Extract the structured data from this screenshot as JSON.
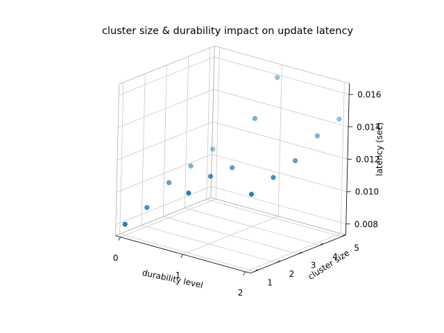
{
  "chart_data": {
    "type": "scatter",
    "projection": "3d",
    "title": "cluster size & durability impact on update latency",
    "xlabel": "durability level",
    "ylabel": "cluster size",
    "zlabel": "latency (sec)",
    "x_ticks": [
      0,
      1,
      2
    ],
    "y_ticks": [
      1,
      2,
      3,
      4,
      5
    ],
    "z_ticks": [
      "0.008",
      "0.010",
      "0.012",
      "0.014",
      "0.016"
    ],
    "xlim": [
      0,
      2
    ],
    "ylim": [
      1,
      5
    ],
    "zlim": [
      0.0075,
      0.0165
    ],
    "grid": true,
    "marker_color": "#1f77b4",
    "points": [
      {
        "x": 0,
        "y": 1,
        "z": 0.008
      },
      {
        "x": 0,
        "y": 2,
        "z": 0.0085
      },
      {
        "x": 0,
        "y": 3,
        "z": 0.0095
      },
      {
        "x": 0,
        "y": 4,
        "z": 0.01
      },
      {
        "x": 0,
        "y": 5,
        "z": 0.0105
      },
      {
        "x": 1,
        "y": 1,
        "z": 0.011
      },
      {
        "x": 1,
        "y": 2,
        "z": 0.0115
      },
      {
        "x": 1,
        "y": 3,
        "z": 0.0115
      },
      {
        "x": 1,
        "y": 4,
        "z": 0.014
      },
      {
        "x": 1,
        "y": 5,
        "z": 0.016
      },
      {
        "x": 2,
        "y": 1,
        "z": 0.012
      },
      {
        "x": 2,
        "y": 2,
        "z": 0.0125
      },
      {
        "x": 2,
        "y": 3,
        "z": 0.013
      },
      {
        "x": 2,
        "y": 4,
        "z": 0.014
      },
      {
        "x": 2,
        "y": 5,
        "z": 0.0145
      }
    ]
  }
}
